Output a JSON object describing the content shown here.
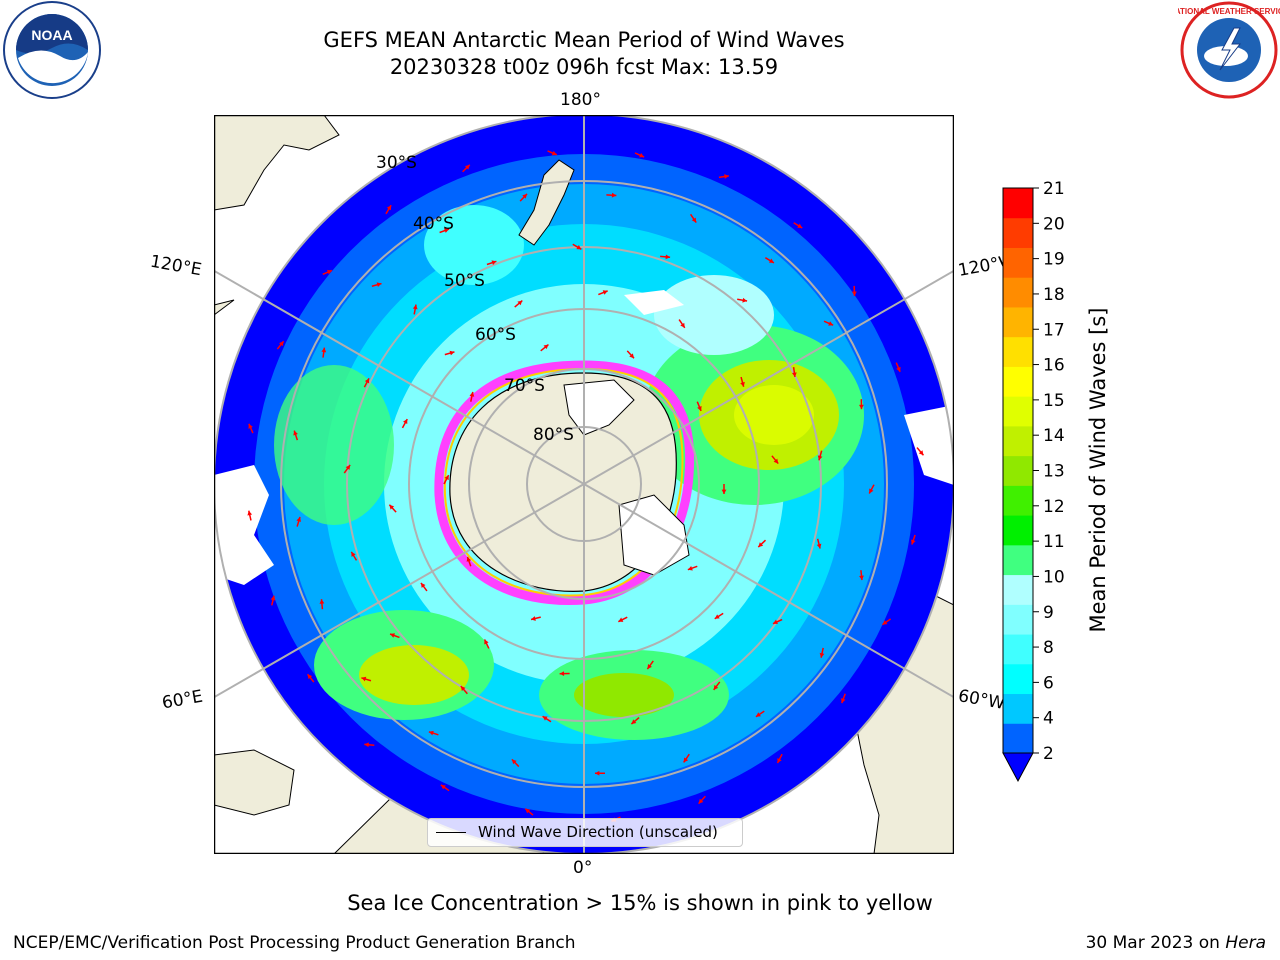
{
  "title": {
    "line1": "GEFS MEAN Antarctic Mean Period of Wind Waves",
    "line2": "20230328 t00z 096h fcst   Max: 13.59"
  },
  "logos": {
    "noaa_text": "NOAA",
    "nws_text": "NATIONAL WEATHER SERVICE"
  },
  "map": {
    "longitude_labels": {
      "top": "180°",
      "bottom": "0°",
      "left_upper": "120°E",
      "left_lower": "60°E",
      "right_upper": "120°W",
      "right_lower": "60°W"
    },
    "latitude_labels": [
      "30°S",
      "40°S",
      "50°S",
      "60°S",
      "70°S",
      "80°S"
    ],
    "legend": "Wind Wave Direction (unscaled)",
    "colors": {
      "land": "#efedda",
      "arrow": "#ff0000",
      "sea_ice": "#ff40ff",
      "grid": "#b0b0b0"
    }
  },
  "colorbar": {
    "label": "Mean Period of Wind Waves [s]",
    "ticks": [
      "21",
      "20",
      "19",
      "18",
      "17",
      "16",
      "15",
      "14",
      "13",
      "12",
      "11",
      "10",
      "9",
      "8",
      "6",
      "4",
      "2"
    ],
    "colors_bottom_to_top": [
      "#0064ff",
      "#00c8ff",
      "#00ffff",
      "#40ffff",
      "#80ffff",
      "#b0ffff",
      "#40ff80",
      "#00f000",
      "#40f000",
      "#90e800",
      "#c0f000",
      "#e0ff00",
      "#ffff00",
      "#ffe000",
      "#ffb400",
      "#ff8c00",
      "#ff6400",
      "#ff3c00",
      "#ff0000"
    ],
    "extend_color": "#0000ff"
  },
  "caption": "Sea Ice Concentration > 15% is shown in pink to yellow",
  "footer": {
    "left": "NCEP/EMC/Verification Post Processing Product Generation Branch",
    "right_date": "30 Mar 2023 on ",
    "right_machine": "Hera"
  }
}
